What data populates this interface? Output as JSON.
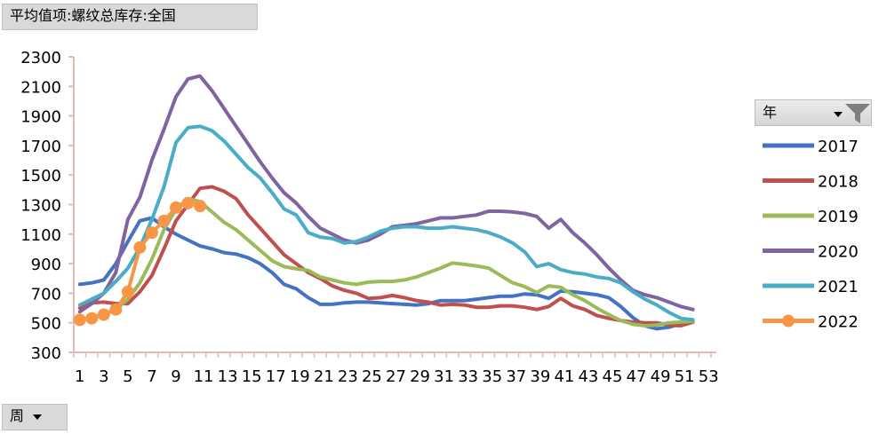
{
  "header": {
    "title": "平均值项:螺纹总库存:全国"
  },
  "axis_button": {
    "label": "周"
  },
  "legend_header": {
    "label": "年"
  },
  "chart_data": {
    "type": "line",
    "ylim": [
      300,
      2300
    ],
    "yticks": [
      300,
      500,
      700,
      900,
      1100,
      1300,
      1500,
      1700,
      1900,
      2100,
      2300
    ],
    "x_tick_labels": [
      "1",
      "3",
      "5",
      "7",
      "9",
      "11",
      "13",
      "15",
      "17",
      "19",
      "21",
      "23",
      "25",
      "27",
      "29",
      "31",
      "33",
      "35",
      "37",
      "39",
      "41",
      "43",
      "45",
      "47",
      "49",
      "51",
      "53"
    ],
    "grid": false,
    "legend_position": "right",
    "series": [
      {
        "name": "2017",
        "color": "#4472c4",
        "values": [
          760,
          770,
          790,
          900,
          1050,
          1190,
          1210,
          1150,
          1100,
          1060,
          1020,
          1000,
          975,
          965,
          940,
          900,
          840,
          760,
          730,
          670,
          625,
          625,
          635,
          640,
          640,
          635,
          630,
          625,
          620,
          630,
          650,
          650,
          650,
          660,
          670,
          680,
          680,
          695,
          690,
          665,
          715,
          710,
          700,
          690,
          670,
          610,
          535,
          480,
          460,
          470,
          495,
          510
        ]
      },
      {
        "name": "2018",
        "color": "#c0504d",
        "values": [
          600,
          635,
          640,
          630,
          630,
          710,
          820,
          1000,
          1190,
          1300,
          1410,
          1420,
          1390,
          1340,
          1230,
          1140,
          1050,
          960,
          900,
          840,
          800,
          750,
          720,
          700,
          665,
          670,
          685,
          670,
          650,
          640,
          620,
          625,
          620,
          605,
          605,
          615,
          615,
          605,
          590,
          610,
          665,
          615,
          590,
          550,
          530,
          515,
          505,
          500,
          500,
          485,
          480,
          505
        ]
      },
      {
        "name": "2019",
        "color": "#9bbb59",
        "values": [
          520,
          535,
          560,
          590,
          660,
          770,
          930,
          1130,
          1270,
          1340,
          1320,
          1250,
          1180,
          1130,
          1060,
          990,
          920,
          880,
          865,
          855,
          810,
          790,
          770,
          760,
          775,
          780,
          780,
          790,
          810,
          840,
          870,
          905,
          895,
          885,
          870,
          820,
          770,
          745,
          705,
          750,
          740,
          690,
          650,
          600,
          555,
          515,
          490,
          480,
          485,
          500,
          505,
          510
        ]
      },
      {
        "name": "2020",
        "color": "#8064a2",
        "values": [
          575,
          630,
          700,
          840,
          1200,
          1350,
          1600,
          1810,
          2030,
          2150,
          2170,
          2070,
          1950,
          1830,
          1710,
          1590,
          1480,
          1380,
          1310,
          1220,
          1140,
          1100,
          1060,
          1040,
          1060,
          1100,
          1150,
          1160,
          1170,
          1190,
          1210,
          1210,
          1220,
          1230,
          1255,
          1255,
          1250,
          1240,
          1220,
          1140,
          1200,
          1110,
          1040,
          960,
          870,
          790,
          720,
          690,
          670,
          640,
          610,
          590
        ]
      },
      {
        "name": "2021",
        "color": "#4bacc6",
        "values": [
          620,
          660,
          700,
          780,
          870,
          1010,
          1200,
          1420,
          1720,
          1820,
          1830,
          1800,
          1730,
          1640,
          1550,
          1480,
          1380,
          1270,
          1230,
          1110,
          1080,
          1070,
          1040,
          1050,
          1080,
          1120,
          1140,
          1150,
          1150,
          1140,
          1140,
          1150,
          1140,
          1130,
          1110,
          1080,
          1040,
          980,
          880,
          900,
          860,
          840,
          830,
          810,
          800,
          770,
          710,
          660,
          620,
          570,
          530,
          520
        ]
      },
      {
        "name": "2022",
        "color": "#f79646",
        "values": [
          520,
          530,
          555,
          590,
          710,
          1010,
          1110,
          1190,
          1280,
          1310,
          1290
        ]
      }
    ]
  }
}
